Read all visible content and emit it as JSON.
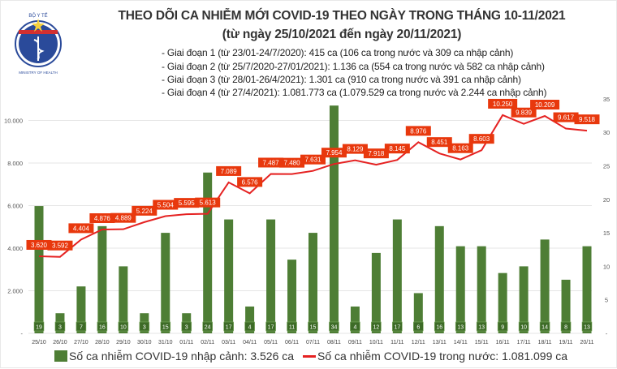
{
  "header": {
    "logo_text": "BỘ Y TẾ · MINISTRY OF HEALTH",
    "title": "THEO DÕI CA NHIỄM MỚI COVID-19 THEO NGÀY TRONG THÁNG 10-11/2021",
    "subtitle": "(từ ngày 25/10/2021 đến ngày 20/11/2021)",
    "phases": [
      "- Giai đoạn 1 (từ 23/01-24/7/2020): 415 ca (106 ca trong nước và 309 ca nhập cảnh)",
      "- Giai đoạn 2 (từ 25/7/2020-27/01/2021): 1.136 ca (554 ca trong nước và 582 ca nhập cảnh)",
      "- Giai đoạn 3 (từ 28/01-26/4/2021): 1.301 ca (910 ca trong nước và 391 ca nhập cảnh)",
      "- Giai đoạn 4 (từ 27/4/2021): 1.081.773 ca (1.079.529 ca trong nước và 2.244 ca nhập cảnh)"
    ]
  },
  "chart_data": {
    "type": "bar+line",
    "categories": [
      "25/10",
      "26/10",
      "27/10",
      "28/10",
      "29/10",
      "30/10",
      "31/10",
      "01/11",
      "02/11",
      "03/11",
      "04/11",
      "05/11",
      "06/11",
      "07/11",
      "08/11",
      "09/11",
      "10/11",
      "11/11",
      "12/11",
      "13/11",
      "14/11",
      "15/11",
      "16/11",
      "17/11",
      "18/11",
      "19/11",
      "20/11"
    ],
    "series": [
      {
        "name": "Số ca nhiễm COVID-19 nhập cảnh: 3.526 ca",
        "type": "bar",
        "axis": "right",
        "color": "#4e7e35",
        "values": [
          19,
          3,
          7,
          16,
          10,
          3,
          15,
          3,
          24,
          17,
          4,
          17,
          11,
          15,
          34,
          4,
          12,
          17,
          6,
          16,
          13,
          13,
          9,
          10,
          14,
          8,
          13
        ]
      },
      {
        "name": "Số ca nhiễm COVID-19 trong nước: 1.081.099 ca",
        "type": "line",
        "axis": "left",
        "color": "#e52222",
        "values": [
          3620,
          3592,
          4404,
          4876,
          4889,
          5224,
          5504,
          5595,
          5613,
          7089,
          6576,
          7487,
          7480,
          7631,
          7954,
          8129,
          7918,
          8145,
          8976,
          8451,
          8163,
          8603,
          10250,
          9839,
          10209,
          9617,
          9518
        ],
        "labels": [
          "3.620",
          "3.592",
          "4.404",
          "4.876",
          "4.889",
          "5.224",
          "5.504",
          "5.595",
          "5.613",
          "7.089",
          "6.576",
          "7.487",
          "7.480",
          "7.631",
          "7.954",
          "8.129",
          "7.918",
          "8.145",
          "8.976",
          "8.451",
          "8.163",
          "8.603",
          "10.250",
          "9.839",
          "10.209",
          "9.617",
          "9.518"
        ]
      }
    ],
    "left_axis": {
      "ylim": [
        0,
        11000
      ],
      "ticks": [
        "-",
        "2.000",
        "4.000",
        "6.000",
        "8.000",
        "10.000"
      ],
      "tick_values": [
        0,
        2000,
        4000,
        6000,
        8000,
        10000
      ]
    },
    "right_axis": {
      "ylim": [
        0,
        35
      ],
      "ticks": [
        "-",
        "5",
        "10",
        "15",
        "20",
        "25",
        "30",
        "35"
      ],
      "tick_values": [
        0,
        5,
        10,
        15,
        20,
        25,
        30,
        35
      ]
    },
    "grid": true,
    "legend_position": "bottom"
  }
}
